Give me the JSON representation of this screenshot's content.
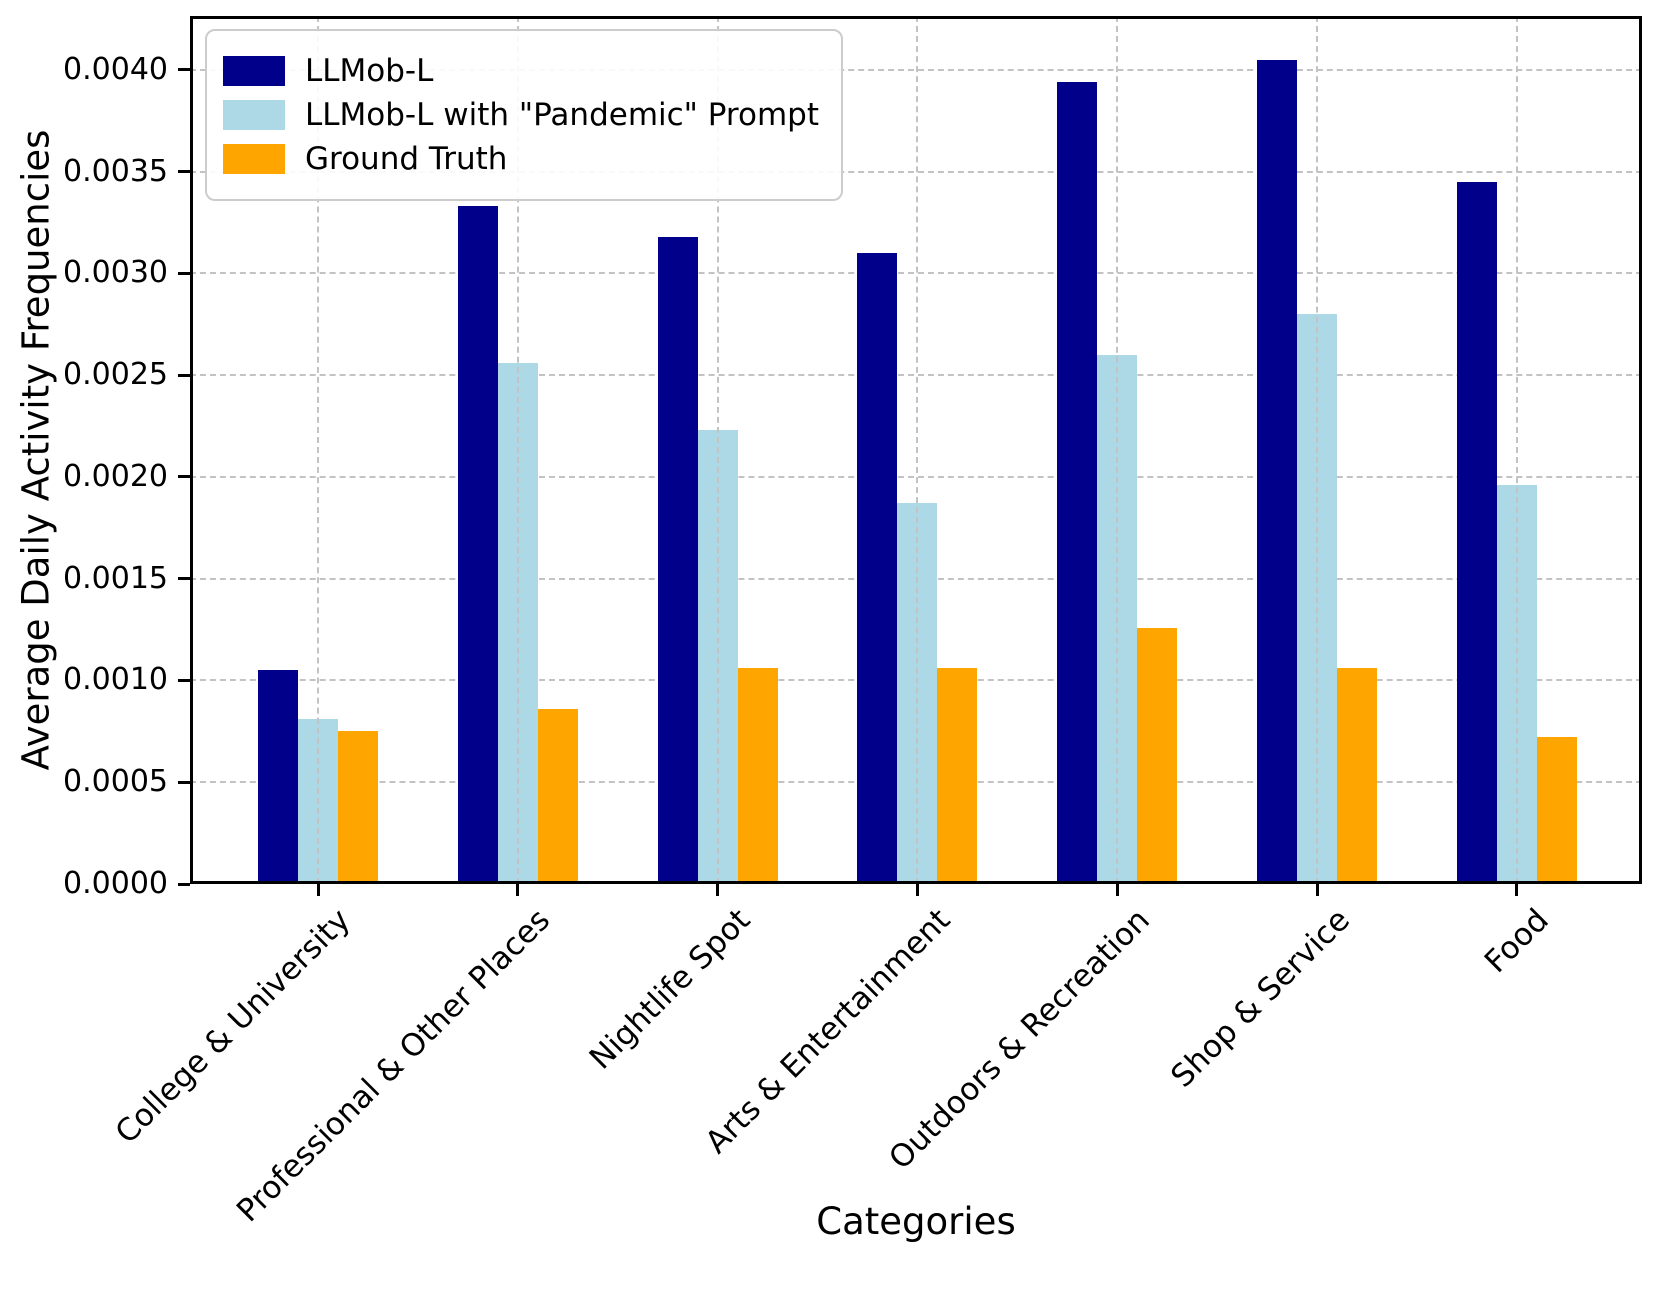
{
  "chart_data": {
    "type": "bar",
    "title": "",
    "xlabel": "Categories",
    "ylabel": "Average Daily Activity Frequencies",
    "categories": [
      "College & University",
      "Professional & Other Places",
      "Nightlife Spot",
      "Arts & Entertainment",
      "Outdoors & Recreation",
      "Shop & Service",
      "Food"
    ],
    "series": [
      {
        "name": "LLMob-L",
        "color": "#00008B",
        "values": [
          0.00105,
          0.00333,
          0.00318,
          0.0031,
          0.00394,
          0.00405,
          0.00345
        ]
      },
      {
        "name": "LLMob-L with \"Pandemic\" Prompt",
        "color": "#ADD8E6",
        "values": [
          0.00081,
          0.00256,
          0.00223,
          0.00187,
          0.0026,
          0.0028,
          0.00196
        ]
      },
      {
        "name": "Ground Truth",
        "color": "#FFA500",
        "values": [
          0.00075,
          0.00086,
          0.00106,
          0.00106,
          0.00126,
          0.00106,
          0.00072
        ]
      }
    ],
    "ylim": [
      0,
      0.004265
    ],
    "yticks": [
      0.0,
      0.0005,
      0.001,
      0.0015,
      0.002,
      0.0025,
      0.003,
      0.0035,
      0.004
    ],
    "ytick_labels": [
      "0.0000",
      "0.0005",
      "0.0010",
      "0.0015",
      "0.0020",
      "0.0025",
      "0.0030",
      "0.0035",
      "0.0040"
    ],
    "grid": true,
    "grid_style": "dashed",
    "legend_position": "upper left"
  }
}
